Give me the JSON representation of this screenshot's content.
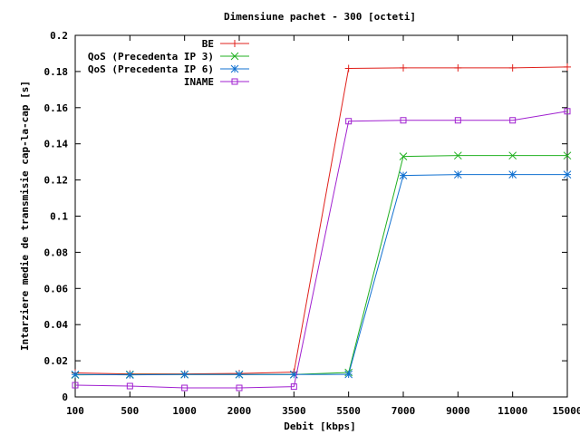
{
  "chart_data": {
    "type": "line",
    "title": "Dimensiune pachet - 300 [octeti]",
    "xlabel": "Debit [kbps]",
    "ylabel": "Intarziere medie de transmisie cap-la-cap [s]",
    "categories": [
      "100",
      "500",
      "1000",
      "2000",
      "3500",
      "5500",
      "7000",
      "9000",
      "11000",
      "15000"
    ],
    "ylim": [
      0,
      0.2
    ],
    "yticks": [
      "0",
      "0.02",
      "0.04",
      "0.06",
      "0.08",
      "0.1",
      "0.12",
      "0.14",
      "0.16",
      "0.18",
      "0.2"
    ],
    "grid": false,
    "legend_position": "top-left",
    "series": [
      {
        "name": "BE",
        "color": "#e0201b",
        "marker": "plus",
        "values": [
          0.0133,
          0.0127,
          0.0127,
          0.013,
          0.0137,
          0.1817,
          0.182,
          0.182,
          0.182,
          0.1825
        ]
      },
      {
        "name": "QoS (Precedenta IP 3)",
        "color": "#20b020",
        "marker": "cross",
        "values": [
          0.0122,
          0.0124,
          0.0124,
          0.0124,
          0.0124,
          0.0135,
          0.133,
          0.1335,
          0.1335,
          0.1335
        ]
      },
      {
        "name": "QoS (Precedenta IP 6)",
        "color": "#1070d0",
        "marker": "asterisk",
        "values": [
          0.0124,
          0.0122,
          0.0124,
          0.0124,
          0.0124,
          0.0125,
          0.1225,
          0.123,
          0.123,
          0.123
        ]
      },
      {
        "name": "INAME",
        "color": "#a020d0",
        "marker": "square",
        "values": [
          0.0065,
          0.006,
          0.005,
          0.005,
          0.0057,
          0.1525,
          0.153,
          0.153,
          0.153,
          0.158
        ]
      }
    ]
  }
}
